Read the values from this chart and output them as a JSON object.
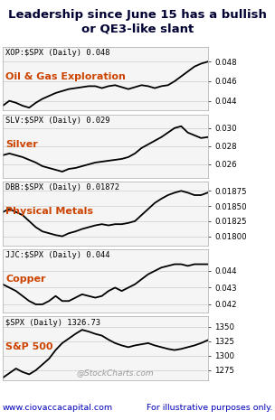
{
  "title": "Leadership since June 15 has a bullish\nor QE3-like slant",
  "title_fontsize": 9.5,
  "footer_left": "www.ciovaccacapital.com",
  "footer_right": "For illustrative purposes only.",
  "watermark": "@StockCharts.com",
  "background_color": "#ffffff",
  "panel_bg": "#f5f5f5",
  "charts": [
    {
      "label": "XOP:$SPX (Daily) 0.048",
      "name": "Oil & Gas Exploration",
      "color": "#000000",
      "name_color": "#cc4400",
      "yticks": [
        0.044,
        0.046,
        0.048
      ],
      "ytick_labels": [
        "0.044",
        "0.046",
        "0.048"
      ],
      "ylim": [
        0.043,
        0.0495
      ],
      "data": [
        0.0435,
        0.044,
        0.0438,
        0.0435,
        0.0433,
        0.0438,
        0.0442,
        0.0445,
        0.0448,
        0.045,
        0.0452,
        0.0453,
        0.0454,
        0.0455,
        0.0455,
        0.0453,
        0.0455,
        0.0456,
        0.0454,
        0.0452,
        0.0454,
        0.0456,
        0.0455,
        0.0453,
        0.0455,
        0.0456,
        0.046,
        0.0465,
        0.047,
        0.0475,
        0.0478,
        0.048
      ]
    },
    {
      "label": "SLV:$SPX (Daily) 0.029",
      "name": "Silver",
      "color": "#000000",
      "name_color": "#cc4400",
      "yticks": [
        0.026,
        0.028,
        0.03
      ],
      "ytick_labels": [
        "0.026",
        "0.028",
        "0.030"
      ],
      "ylim": [
        0.0245,
        0.0315
      ],
      "data": [
        0.027,
        0.0272,
        0.027,
        0.0268,
        0.0265,
        0.0262,
        0.0258,
        0.0256,
        0.0254,
        0.0252,
        0.0255,
        0.0256,
        0.0258,
        0.026,
        0.0262,
        0.0263,
        0.0264,
        0.0265,
        0.0266,
        0.0268,
        0.0272,
        0.0278,
        0.0282,
        0.0286,
        0.029,
        0.0295,
        0.03,
        0.0302,
        0.0295,
        0.0292,
        0.0289,
        0.029
      ]
    },
    {
      "label": "DBB:$SPX (Daily) 0.01872",
      "name": "Physical Metals",
      "color": "#000000",
      "name_color": "#cc4400",
      "yticks": [
        0.018,
        0.01825,
        0.0185,
        0.01875
      ],
      "ytick_labels": [
        "0.01800",
        "0.01825",
        "0.01850",
        "0.01875"
      ],
      "ylim": [
        0.01785,
        0.0189
      ],
      "data": [
        0.0184,
        0.01845,
        0.0184,
        0.01835,
        0.01825,
        0.01815,
        0.01808,
        0.01805,
        0.01802,
        0.018,
        0.01805,
        0.01808,
        0.01812,
        0.01815,
        0.01818,
        0.0182,
        0.01818,
        0.0182,
        0.0182,
        0.01822,
        0.01825,
        0.01835,
        0.01845,
        0.01855,
        0.01862,
        0.01868,
        0.01872,
        0.01875,
        0.01872,
        0.01868,
        0.01868,
        0.01872
      ]
    },
    {
      "label": "JJC:$SPX (Daily) 0.044",
      "name": "Copper",
      "color": "#000000",
      "name_color": "#cc4400",
      "yticks": [
        0.042,
        0.043,
        0.044
      ],
      "ytick_labels": [
        "0.042",
        "0.043",
        "0.044"
      ],
      "ylim": [
        0.0415,
        0.0453
      ],
      "data": [
        0.0432,
        0.043,
        0.0428,
        0.0425,
        0.0422,
        0.042,
        0.042,
        0.0422,
        0.0425,
        0.0422,
        0.0422,
        0.0424,
        0.0426,
        0.0425,
        0.0424,
        0.0425,
        0.0428,
        0.043,
        0.0428,
        0.043,
        0.0432,
        0.0435,
        0.0438,
        0.044,
        0.0442,
        0.0443,
        0.0444,
        0.0444,
        0.0443,
        0.0444,
        0.0444,
        0.0444
      ]
    },
    {
      "label": "$SPX (Daily) 1326.73",
      "name": "S&P 500",
      "color": "#000000",
      "name_color": "#cc4400",
      "yticks": [
        1275,
        1300,
        1325,
        1350
      ],
      "ytick_labels": [
        "1275",
        "1300",
        "1325",
        "1350"
      ],
      "ylim": [
        1258,
        1368
      ],
      "data": [
        1262,
        1270,
        1278,
        1272,
        1268,
        1275,
        1285,
        1295,
        1310,
        1322,
        1330,
        1338,
        1345,
        1342,
        1338,
        1335,
        1328,
        1322,
        1318,
        1315,
        1318,
        1320,
        1322,
        1318,
        1315,
        1312,
        1310,
        1312,
        1315,
        1318,
        1322,
        1327
      ]
    }
  ]
}
